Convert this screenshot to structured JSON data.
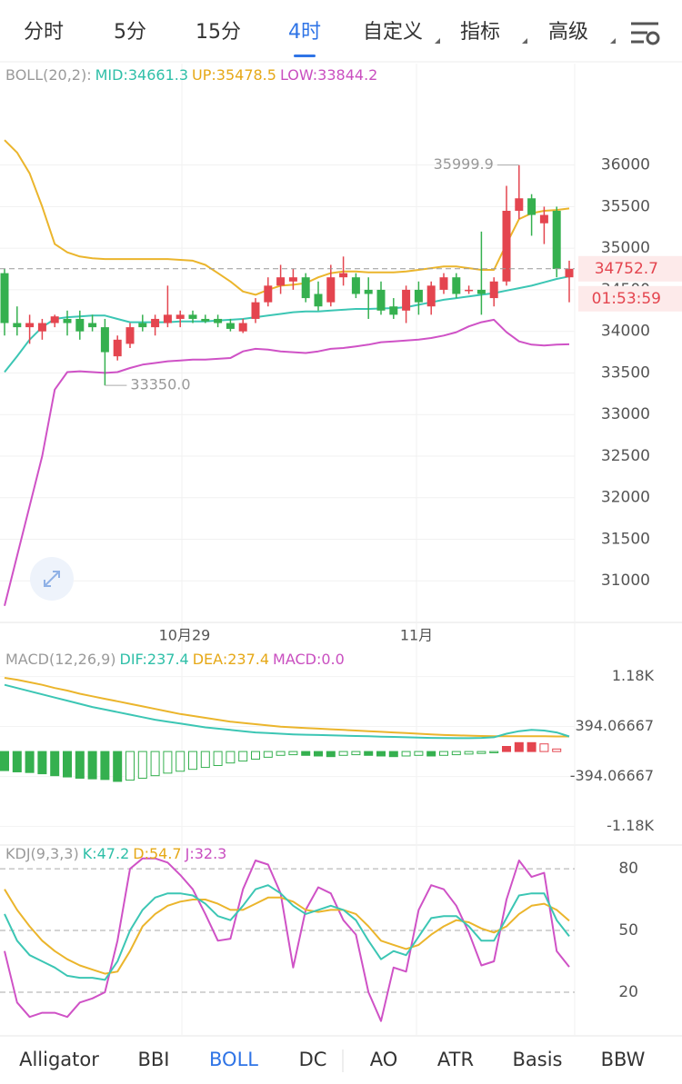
{
  "tabs": {
    "items": [
      "分时",
      "5分",
      "15分",
      "4时",
      "自定义",
      "指标",
      "高级"
    ],
    "active": "4时"
  },
  "main": {
    "legend": {
      "title": "BOLL(20,2):",
      "mid": "MID:34661.3",
      "up": "UP:35478.5",
      "low": "LOW:33844.2"
    },
    "ylim": [
      30500,
      37220
    ],
    "yticks": [
      31000,
      31500,
      32000,
      32500,
      33000,
      33500,
      34000,
      34500,
      35000,
      35500,
      36000
    ],
    "candles": [
      [
        34700,
        34750,
        33950,
        34100
      ],
      [
        34100,
        34300,
        33950,
        34050
      ],
      [
        34050,
        34200,
        33850,
        34100
      ],
      [
        34000,
        34150,
        33900,
        34100
      ],
      [
        34100,
        34200,
        34050,
        34180
      ],
      [
        34150,
        34250,
        33950,
        34100
      ],
      [
        34150,
        34250,
        33900,
        34000
      ],
      [
        34100,
        34200,
        34000,
        34050
      ],
      [
        34050,
        34150,
        33350,
        33750
      ],
      [
        33700,
        33950,
        33650,
        33900
      ],
      [
        33850,
        34100,
        33800,
        34050
      ],
      [
        34100,
        34200,
        34000,
        34050
      ],
      [
        34050,
        34200,
        33950,
        34150
      ],
      [
        34100,
        34550,
        34050,
        34200
      ],
      [
        34150,
        34250,
        34050,
        34200
      ],
      [
        34200,
        34250,
        34100,
        34150
      ],
      [
        34150,
        34200,
        34100,
        34120
      ],
      [
        34150,
        34200,
        34050,
        34100
      ],
      [
        34100,
        34150,
        34000,
        34030
      ],
      [
        34000,
        34150,
        33980,
        34100
      ],
      [
        34150,
        34400,
        34100,
        34350
      ],
      [
        34350,
        34650,
        34300,
        34550
      ],
      [
        34550,
        34800,
        34450,
        34650
      ],
      [
        34600,
        34750,
        34500,
        34650
      ],
      [
        34650,
        34700,
        34350,
        34400
      ],
      [
        34450,
        34600,
        34250,
        34300
      ],
      [
        34350,
        34800,
        34300,
        34650
      ],
      [
        34650,
        34900,
        34550,
        34700
      ],
      [
        34650,
        34700,
        34400,
        34450
      ],
      [
        34500,
        34650,
        34150,
        34450
      ],
      [
        34500,
        34600,
        34200,
        34250
      ],
      [
        34300,
        34400,
        34150,
        34200
      ],
      [
        34250,
        34550,
        34100,
        34500
      ],
      [
        34500,
        34600,
        34200,
        34350
      ],
      [
        34300,
        34600,
        34200,
        34550
      ],
      [
        34500,
        34700,
        34450,
        34650
      ],
      [
        34650,
        34700,
        34400,
        34450
      ],
      [
        34500,
        34550,
        34450,
        34500
      ],
      [
        34500,
        35200,
        34200,
        34450
      ],
      [
        34400,
        34650,
        34300,
        34600
      ],
      [
        34600,
        35750,
        34550,
        35450
      ],
      [
        35450,
        35999.9,
        35350,
        35600
      ],
      [
        35600,
        35650,
        35150,
        35400
      ],
      [
        35300,
        35500,
        35050,
        35400
      ],
      [
        35450,
        35500,
        34650,
        34750
      ],
      [
        34650,
        34850,
        34350,
        34752.7
      ]
    ],
    "mid": [
      33510,
      33700,
      33900,
      34050,
      34150,
      34170,
      34180,
      34190,
      34190,
      34150,
      34110,
      34110,
      34110,
      34110,
      34120,
      34120,
      34120,
      34130,
      34140,
      34150,
      34170,
      34190,
      34210,
      34230,
      34240,
      34240,
      34250,
      34260,
      34270,
      34270,
      34275,
      34280,
      34290,
      34320,
      34350,
      34380,
      34400,
      34420,
      34440,
      34460,
      34490,
      34520,
      34550,
      34590,
      34630,
      34661.3
    ],
    "up": [
      36300,
      36150,
      35900,
      35500,
      35050,
      34950,
      34900,
      34880,
      34870,
      34870,
      34870,
      34870,
      34870,
      34870,
      34860,
      34850,
      34800,
      34700,
      34600,
      34480,
      34440,
      34500,
      34550,
      34560,
      34580,
      34650,
      34700,
      34720,
      34720,
      34710,
      34710,
      34710,
      34720,
      34740,
      34760,
      34780,
      34780,
      34760,
      34740,
      34740,
      35050,
      35350,
      35420,
      35450,
      35460,
      35478.5
    ],
    "low": [
      30700,
      31300,
      31900,
      32500,
      33300,
      33510,
      33520,
      33510,
      33500,
      33510,
      33560,
      33600,
      33620,
      33640,
      33650,
      33660,
      33660,
      33670,
      33680,
      33760,
      33790,
      33780,
      33760,
      33750,
      33740,
      33760,
      33790,
      33800,
      33820,
      33840,
      33870,
      33880,
      33890,
      33900,
      33920,
      33950,
      33990,
      34060,
      34110,
      34140,
      33990,
      33880,
      33840,
      33830,
      33840,
      33844.2
    ],
    "colors": {
      "rise": "#e4454f",
      "fall": "#35b04f",
      "mid": "#3cc6b4",
      "up": "#ebb52c",
      "low": "#cf52c6"
    },
    "high_label": "35999.9",
    "low_label": "33350.0",
    "last_price": 34752.7,
    "countdown": "01:53:59",
    "x_labels": [
      "10月29",
      "11月"
    ]
  },
  "macd": {
    "legend": {
      "title": "MACD(12,26,9)",
      "dif": "DIF:237.4",
      "dea": "DEA:237.4",
      "macd": "MACD:0.0"
    },
    "ylim": [
      -1400,
      1560
    ],
    "yticks": [
      {
        "value": 1180,
        "label": "1.18K"
      },
      394.06667,
      -394.06667,
      {
        "value": -1180,
        "label": "-1.18K"
      }
    ],
    "dif": [
      1050,
      1000,
      950,
      900,
      850,
      800,
      750,
      700,
      660,
      620,
      580,
      540,
      500,
      470,
      440,
      410,
      380,
      360,
      340,
      320,
      300,
      290,
      280,
      270,
      265,
      260,
      255,
      250,
      245,
      240,
      235,
      230,
      225,
      220,
      215,
      212,
      210,
      210,
      215,
      225,
      280,
      320,
      340,
      330,
      300,
      237.4
    ],
    "dea": [
      1160,
      1130,
      1090,
      1050,
      1000,
      960,
      910,
      870,
      830,
      790,
      750,
      710,
      670,
      630,
      590,
      560,
      530,
      500,
      470,
      450,
      430,
      410,
      390,
      380,
      370,
      360,
      350,
      340,
      330,
      320,
      310,
      300,
      290,
      280,
      270,
      260,
      255,
      250,
      245,
      240,
      240,
      240,
      240,
      240,
      238,
      237.4
    ],
    "hist": [
      -300,
      -320,
      -330,
      -350,
      -380,
      -400,
      -420,
      -430,
      -440,
      -470,
      -450,
      -420,
      -380,
      -340,
      -310,
      -280,
      -250,
      -220,
      -180,
      -150,
      -120,
      -90,
      -60,
      -50,
      -60,
      -70,
      -80,
      -60,
      -50,
      -60,
      -70,
      -80,
      -70,
      -60,
      -70,
      -60,
      -50,
      -40,
      -30,
      -20,
      80,
      140,
      140,
      120,
      40,
      0
    ]
  },
  "kdj": {
    "legend": {
      "title": "KDJ(9,3,3)",
      "k": "K:47.2",
      "d": "D:54.7",
      "j": "J:32.3"
    },
    "ylim": [
      -1.2,
      89.3
    ],
    "yticks": [
      80,
      50,
      20
    ],
    "k": [
      58,
      45,
      38,
      35,
      32,
      28,
      27,
      27,
      26,
      35,
      50,
      60,
      66,
      68,
      68,
      67,
      63,
      57,
      55,
      62,
      70,
      72,
      68,
      62,
      58,
      60,
      62,
      60,
      55,
      45,
      36,
      40,
      38,
      47,
      56,
      57,
      57,
      52,
      45,
      45,
      56,
      67,
      68,
      68,
      55,
      47.2
    ],
    "d": [
      70,
      60,
      52,
      45,
      40,
      36,
      33,
      31,
      29,
      30,
      40,
      52,
      58,
      62,
      64,
      65,
      65,
      63,
      60,
      60,
      63,
      66,
      66,
      64,
      60,
      59,
      60,
      60,
      58,
      52,
      45,
      43,
      41,
      43,
      48,
      52,
      55,
      54,
      51,
      49,
      52,
      58,
      62,
      63,
      60,
      54.7
    ],
    "j": [
      40,
      15,
      8,
      10,
      10,
      8,
      15,
      17,
      20,
      45,
      80,
      85,
      85,
      83,
      77,
      70,
      58,
      45,
      46,
      70,
      84,
      82,
      68,
      32,
      60,
      71,
      68,
      55,
      48,
      20,
      6,
      32,
      30,
      60,
      72,
      70,
      62,
      49,
      33,
      35,
      65,
      84,
      76,
      78,
      40,
      32.3
    ]
  },
  "bottom_tabs": {
    "items": [
      "Alligator",
      "BBI",
      "BOLL",
      "DC",
      "AO",
      "ATR",
      "Basis",
      "BBW"
    ],
    "active": "BOLL"
  }
}
